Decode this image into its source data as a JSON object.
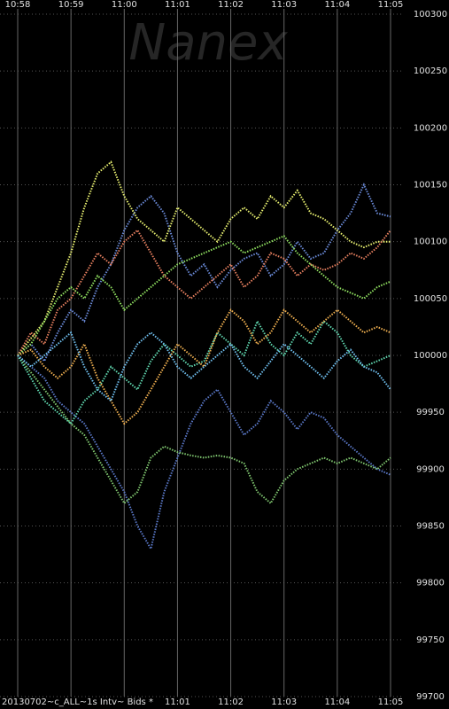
{
  "chart_data": {
    "type": "line",
    "watermark": "Nanex",
    "footer": "20130702~c_ALL~1s Intv~ Bids *",
    "xlim": [
      "10:58",
      "11:05"
    ],
    "xticks": [
      "10:58",
      "10:59",
      "11:00",
      "11:01",
      "11:02",
      "11:03",
      "11:04",
      "11:05"
    ],
    "ylim": [
      99700,
      100300
    ],
    "yticks": [
      99700,
      99750,
      99800,
      99850,
      99900,
      99950,
      100000,
      100050,
      100100,
      100150,
      100200,
      100250,
      100300
    ],
    "grid": true,
    "x": [
      "10:58:00",
      "10:58:15",
      "10:58:30",
      "10:58:45",
      "10:59:00",
      "10:59:15",
      "10:59:30",
      "10:59:45",
      "11:00:00",
      "11:00:15",
      "11:00:30",
      "11:00:45",
      "11:01:00",
      "11:01:15",
      "11:01:30",
      "11:01:45",
      "11:02:00",
      "11:02:15",
      "11:02:30",
      "11:02:45",
      "11:03:00",
      "11:03:15",
      "11:03:30",
      "11:03:45",
      "11:04:00",
      "11:04:15",
      "11:04:30",
      "11:04:45",
      "11:05:00"
    ],
    "series": [
      {
        "color": "#6a8ad8",
        "values": [
          100000,
          100010,
          99995,
          100020,
          100040,
          100030,
          100060,
          100080,
          100110,
          100130,
          100140,
          100125,
          100090,
          100070,
          100080,
          100060,
          100075,
          100085,
          100090,
          100070,
          100080,
          100100,
          100085,
          100090,
          100110,
          100125,
          100150,
          100125,
          100122
        ]
      },
      {
        "color": "#5a78c8",
        "values": [
          100000,
          99990,
          99980,
          99960,
          99950,
          99940,
          99920,
          99900,
          99880,
          99850,
          99830,
          99880,
          99910,
          99940,
          99960,
          99970,
          99950,
          99930,
          99940,
          99960,
          99950,
          99935,
          99950,
          99945,
          99930,
          99920,
          99910,
          99900,
          99895
        ]
      },
      {
        "color": "#e8f070",
        "values": [
          100000,
          100015,
          100030,
          100060,
          100090,
          100130,
          100160,
          100170,
          100140,
          100120,
          100110,
          100100,
          100130,
          100120,
          100110,
          100100,
          100120,
          100130,
          100120,
          100140,
          100130,
          100145,
          100125,
          100120,
          100110,
          100100,
          100095,
          100100,
          100100
        ]
      },
      {
        "color": "#80c870",
        "values": [
          100000,
          99985,
          99970,
          99955,
          99940,
          99930,
          99910,
          99890,
          99870,
          99880,
          99910,
          99920,
          99915,
          99912,
          99910,
          99912,
          99910,
          99905,
          99880,
          99870,
          99890,
          99900,
          99905,
          99910,
          99905,
          99910,
          99905,
          99900,
          99910
        ]
      },
      {
        "color": "#e88060",
        "values": [
          100000,
          100020,
          100010,
          100040,
          100050,
          100070,
          100090,
          100080,
          100100,
          100110,
          100090,
          100070,
          100060,
          100050,
          100060,
          100070,
          100080,
          100060,
          100070,
          100090,
          100085,
          100070,
          100080,
          100075,
          100080,
          100090,
          100085,
          100095,
          100110
        ]
      },
      {
        "color": "#60d8b0",
        "values": [
          100000,
          99980,
          99960,
          99950,
          99940,
          99960,
          99970,
          99990,
          99980,
          99970,
          99995,
          100010,
          100000,
          99990,
          99995,
          100020,
          100010,
          100000,
          100030,
          100010,
          100000,
          100020,
          100010,
          100030,
          100020,
          100000,
          99990,
          99995,
          100000
        ]
      },
      {
        "color": "#90e060",
        "values": [
          100000,
          100010,
          100030,
          100050,
          100060,
          100050,
          100070,
          100060,
          100040,
          100050,
          100060,
          100070,
          100080,
          100085,
          100090,
          100095,
          100100,
          100090,
          100095,
          100100,
          100105,
          100090,
          100080,
          100070,
          100060,
          100055,
          100050,
          100060,
          100065
        ]
      },
      {
        "color": "#f0b050",
        "values": [
          100000,
          100005,
          99990,
          99980,
          99990,
          100010,
          99980,
          99960,
          99940,
          99950,
          99970,
          99990,
          100010,
          100000,
          99990,
          100020,
          100040,
          100030,
          100010,
          100020,
          100040,
          100030,
          100020,
          100030,
          100040,
          100030,
          100020,
          100025,
          100020
        ]
      },
      {
        "color": "#70c0f0",
        "values": [
          100000,
          99990,
          100000,
          100010,
          100020,
          99990,
          99970,
          99960,
          99990,
          100010,
          100020,
          100010,
          99990,
          99980,
          99990,
          100000,
          100010,
          99990,
          99980,
          99995,
          100010,
          100000,
          99990,
          99980,
          99995,
          100005,
          99990,
          99985,
          99970
        ]
      }
    ]
  }
}
